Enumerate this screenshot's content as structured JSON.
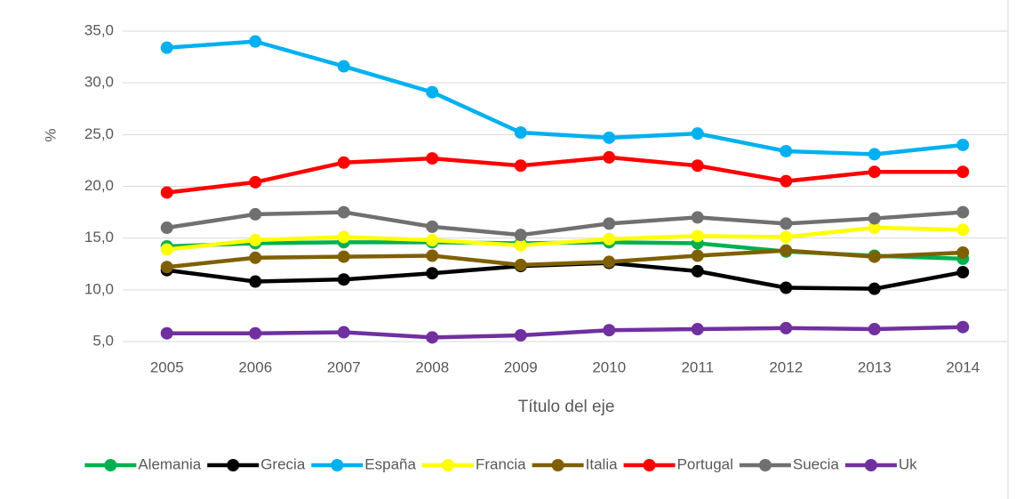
{
  "chart_data": {
    "type": "line",
    "xlabel": "Título del eje",
    "ylabel": "%",
    "categories": [
      "2005",
      "2006",
      "2007",
      "2008",
      "2009",
      "2010",
      "2011",
      "2012",
      "2013",
      "2014"
    ],
    "series": [
      {
        "name": "Alemania",
        "color": "#00b050",
        "values": [
          14.2,
          14.5,
          14.6,
          14.6,
          14.5,
          14.6,
          14.5,
          13.7,
          13.3,
          13.0
        ]
      },
      {
        "name": "Grecia",
        "color": "#000000",
        "values": [
          11.9,
          10.8,
          11.0,
          11.6,
          12.3,
          12.6,
          11.8,
          10.2,
          10.1,
          11.7
        ]
      },
      {
        "name": "España",
        "color": "#00b0f0",
        "values": [
          33.4,
          34.0,
          31.6,
          29.1,
          25.2,
          24.7,
          25.1,
          23.4,
          23.1,
          24.0
        ]
      },
      {
        "name": "Francia",
        "color": "#ffff00",
        "values": [
          13.9,
          14.8,
          15.1,
          14.8,
          14.3,
          14.9,
          15.2,
          15.1,
          16.0,
          15.8
        ]
      },
      {
        "name": "Italia",
        "color": "#7f6000",
        "values": [
          12.2,
          13.1,
          13.2,
          13.3,
          12.4,
          12.7,
          13.3,
          13.8,
          13.2,
          13.6
        ]
      },
      {
        "name": "Portugal",
        "color": "#ff0000",
        "values": [
          19.4,
          20.4,
          22.3,
          22.7,
          22.0,
          22.8,
          22.0,
          20.5,
          21.4,
          21.4
        ]
      },
      {
        "name": "Suecia",
        "color": "#707070",
        "values": [
          16.0,
          17.3,
          17.5,
          16.1,
          15.3,
          16.4,
          17.0,
          16.4,
          16.9,
          17.5
        ]
      },
      {
        "name": "Uk",
        "color": "#7030a0",
        "values": [
          5.8,
          5.8,
          5.9,
          5.4,
          5.6,
          6.1,
          6.2,
          6.3,
          6.2,
          6.4
        ]
      }
    ],
    "ylim": [
      5,
      35
    ],
    "yticks": [
      {
        "value": 5,
        "label": "5,0"
      },
      {
        "value": 10,
        "label": "10,0"
      },
      {
        "value": 15,
        "label": "15,0"
      },
      {
        "value": 20,
        "label": "20,0"
      },
      {
        "value": 25,
        "label": "25,0"
      },
      {
        "value": 30,
        "label": "30,0"
      },
      {
        "value": 35,
        "label": "35,0"
      }
    ],
    "grid": true,
    "legend": "bottom"
  }
}
